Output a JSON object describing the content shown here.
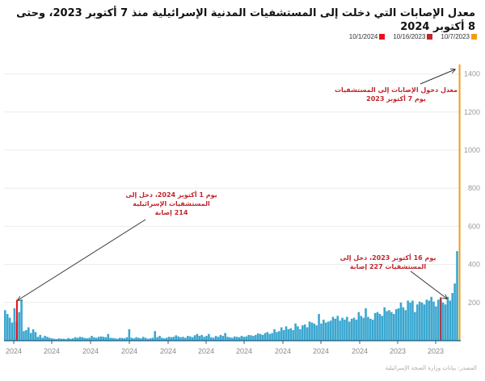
{
  "chart_data": {
    "type": "bar",
    "title": "معدل الإصابات التي دخلت إلى المستشفيات المدنية الإسرائيلية منذ 7 أكتوبر 2023، وحتى 8 أكتوبر 2024",
    "direction": "right-to-left",
    "ylim": [
      0,
      1450
    ],
    "yticks": [
      200,
      400,
      600,
      800,
      1000,
      1200,
      1400
    ],
    "xtick_labels": [
      "2024",
      "2024",
      "2024",
      "2024",
      "2024",
      "2024",
      "2024",
      "2024",
      "2024",
      "2024",
      "2023",
      "2023"
    ],
    "grid": true,
    "legend_position": "top-right",
    "legend": [
      {
        "label": "10/7/2023",
        "color": "#f39c12"
      },
      {
        "label": "10/16/2023",
        "color": "#c0262d"
      },
      {
        "label": "10/1/2024",
        "color": "#e8101a"
      }
    ],
    "bar_color": "#3aa7d0",
    "series_note": "values ordered from 10/7/2023 (rightmost) to 10/8/2024 (leftmost)",
    "values": [
      1450,
      470,
      300,
      250,
      210,
      230,
      190,
      200,
      227,
      215,
      180,
      205,
      230,
      210,
      215,
      190,
      200,
      205,
      190,
      150,
      210,
      200,
      210,
      160,
      175,
      200,
      170,
      165,
      140,
      150,
      160,
      155,
      175,
      130,
      140,
      150,
      145,
      110,
      115,
      125,
      170,
      120,
      130,
      150,
      110,
      120,
      115,
      100,
      125,
      110,
      120,
      105,
      130,
      115,
      125,
      105,
      100,
      95,
      110,
      90,
      140,
      80,
      90,
      95,
      100,
      70,
      85,
      80,
      60,
      75,
      90,
      55,
      65,
      60,
      75,
      55,
      70,
      50,
      45,
      60,
      40,
      35,
      45,
      40,
      30,
      35,
      38,
      30,
      25,
      28,
      30,
      22,
      20,
      25,
      18,
      20,
      22,
      15,
      18,
      20,
      40,
      25,
      30,
      20,
      25,
      15,
      18,
      35,
      25,
      20,
      30,
      25,
      35,
      28,
      18,
      22,
      25,
      15,
      20,
      18,
      22,
      28,
      20,
      18,
      20,
      15,
      12,
      15,
      25,
      18,
      50,
      15,
      12,
      10,
      15,
      20,
      12,
      15,
      18,
      12,
      15,
      60,
      18,
      12,
      14,
      15,
      10,
      12,
      14,
      15,
      35,
      18,
      20,
      22,
      20,
      15,
      18,
      25,
      15,
      12,
      14,
      18,
      20,
      15,
      18,
      12,
      10,
      14,
      8,
      10,
      10,
      12,
      8,
      10,
      12,
      15,
      20,
      25,
      15,
      30,
      20,
      45,
      60,
      40,
      70,
      55,
      50,
      214,
      150,
      100,
      170,
      95,
      120,
      140,
      160
    ],
    "markers": [
      {
        "date": "10/7/2023",
        "value": 1450,
        "color": "#f39c12"
      },
      {
        "date": "10/16/2023",
        "value": 227,
        "color": "#c0262d"
      },
      {
        "date": "10/1/2024",
        "value": 214,
        "color": "#e8101a"
      }
    ],
    "annotations": [
      {
        "id": "oct7",
        "lines": [
          "معدل دخول الإصابات إلى المستشفيات",
          "يوم 7 أكتوبر 2023"
        ]
      },
      {
        "id": "oct16",
        "lines": [
          "يوم 16 أكتوبر 2023، دخل إلى",
          "المستشفيات 227 إصابة"
        ]
      },
      {
        "id": "oct1",
        "lines": [
          "يوم 1 أكتوبر 2024، دخل إلى",
          "المستشفيات الإسرائيلية",
          "214 إصابة"
        ]
      }
    ]
  },
  "source": "المصدر: بيانات وزارة الصحة الإسرائيلية"
}
